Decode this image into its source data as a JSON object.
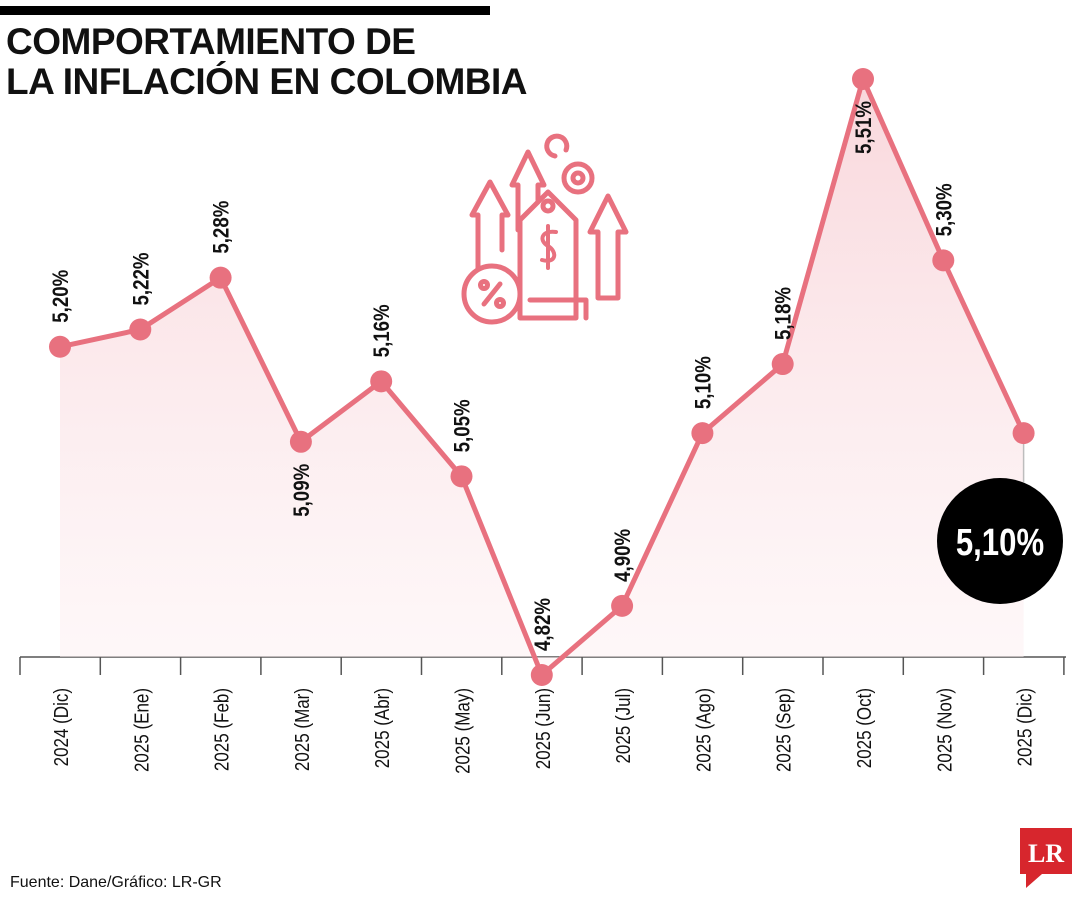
{
  "title": {
    "line1": "COMPORTAMIENTO DE",
    "line2": "LA INFLACIÓN EN COLOMBIA"
  },
  "source": "Fuente: Dane/Gráfico: LR-GR",
  "logo": "LR",
  "final_badge": "5,10%",
  "colors": {
    "line": "#e8717f",
    "fill": "#fbe6e9",
    "badge": "#000000",
    "logo": "#d7262d"
  },
  "icon": "inflation-price-tag-arrows-icon",
  "chart_data": {
    "type": "line",
    "title": "COMPORTAMIENTO DE LA INFLACIÓN EN COLOMBIA",
    "xlabel": "",
    "ylabel": "",
    "categories": [
      "2024 (Dic)",
      "2025 (Ene)",
      "2025 (Feb)",
      "2025 (Mar)",
      "2025 (Abr)",
      "2025 (May)",
      "2025 (Jun)",
      "2025 (Jul)",
      "2025 (Ago)",
      "2025 (Sep)",
      "2025 (Oct)",
      "2025 (Nov)",
      "2025 (Dic)"
    ],
    "values": [
      5.2,
      5.22,
      5.28,
      5.09,
      5.16,
      5.05,
      4.82,
      4.9,
      5.1,
      5.18,
      5.51,
      5.3,
      5.1
    ],
    "labels": [
      "5,20%",
      "5,22%",
      "5,28%",
      "5,09%",
      "5,16%",
      "5,05%",
      "4,82%",
      "4,90%",
      "5,10%",
      "5,18%",
      "5,51%",
      "5,30%",
      "5,10%"
    ],
    "ylim": [
      4.82,
      5.51
    ],
    "grid": false,
    "area_fill": true
  }
}
